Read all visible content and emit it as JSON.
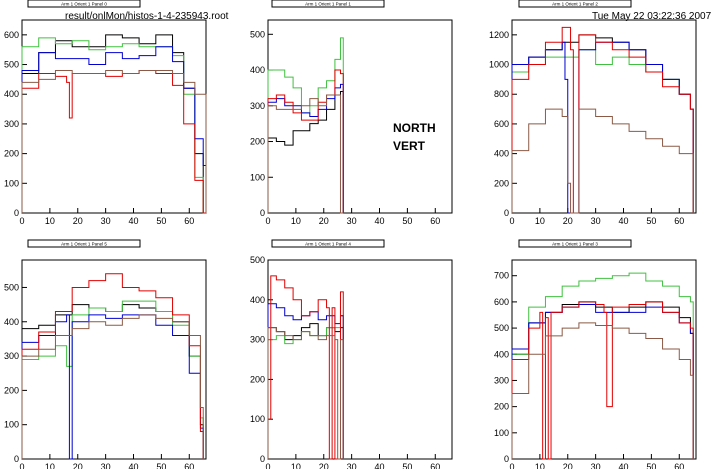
{
  "header": {
    "file_title": "result/onlMon/histos-1-4-235943.root",
    "datetime": "Tue May 22 03:22:36 2007"
  },
  "annotation": {
    "line1": "NORTH",
    "line2": "VERT"
  },
  "colors": {
    "black": "#000000",
    "red": "#e00000",
    "green": "#40c040",
    "blue": "#0000d0",
    "brown": "#8b5a46"
  },
  "chart_data": [
    {
      "type": "line",
      "title": "Arm 1 Orient 1 Panel 0",
      "xlim": [
        0,
        66
      ],
      "ylim": [
        0,
        650
      ],
      "xticks": [
        0,
        10,
        20,
        30,
        40,
        50,
        60
      ],
      "yticks": [
        0,
        100,
        200,
        300,
        400,
        500,
        600
      ],
      "series": [
        {
          "color": "black",
          "x": [
            0,
            6,
            12,
            18,
            24,
            30,
            36,
            42,
            48,
            54,
            58,
            62,
            65
          ],
          "values": [
            470,
            540,
            580,
            560,
            560,
            600,
            590,
            570,
            600,
            540,
            420,
            200,
            0
          ]
        },
        {
          "color": "green",
          "x": [
            0,
            6,
            12,
            18,
            24,
            30,
            36,
            42,
            48,
            54,
            58,
            62,
            65
          ],
          "values": [
            560,
            590,
            570,
            580,
            550,
            560,
            570,
            560,
            560,
            530,
            400,
            120,
            0
          ]
        },
        {
          "color": "blue",
          "x": [
            0,
            6,
            12,
            18,
            24,
            30,
            36,
            42,
            48,
            54,
            58,
            62,
            65
          ],
          "values": [
            480,
            540,
            520,
            520,
            500,
            540,
            520,
            530,
            560,
            510,
            420,
            250,
            160
          ]
        },
        {
          "color": "red",
          "x": [
            0,
            6,
            12,
            16,
            17,
            18,
            24,
            30,
            36,
            42,
            48,
            54,
            58,
            62,
            65
          ],
          "values": [
            420,
            470,
            460,
            440,
            320,
            470,
            470,
            460,
            470,
            480,
            470,
            430,
            300,
            110,
            0
          ]
        },
        {
          "color": "brown",
          "x": [
            0,
            6,
            12,
            18,
            24,
            30,
            36,
            42,
            48,
            54,
            58,
            62,
            65
          ],
          "values": [
            440,
            450,
            480,
            470,
            470,
            480,
            470,
            480,
            480,
            470,
            440,
            400,
            400
          ]
        }
      ]
    },
    {
      "type": "line",
      "title": "Arm 1 Orient 1 Panel 1",
      "xlim": [
        0,
        66
      ],
      "ylim": [
        0,
        540
      ],
      "xticks": [
        0,
        10,
        20,
        30,
        40,
        50,
        60
      ],
      "yticks": [
        0,
        100,
        200,
        300,
        400,
        500
      ],
      "series": [
        {
          "color": "black",
          "x": [
            0,
            3,
            6,
            9,
            12,
            15,
            18,
            21,
            24,
            26
          ],
          "values": [
            210,
            200,
            190,
            230,
            230,
            250,
            260,
            290,
            330,
            340
          ]
        },
        {
          "color": "green",
          "x": [
            0,
            3,
            6,
            9,
            12,
            15,
            18,
            21,
            24,
            26
          ],
          "values": [
            400,
            400,
            380,
            350,
            280,
            300,
            350,
            370,
            430,
            490
          ]
        },
        {
          "color": "blue",
          "x": [
            0,
            3,
            6,
            9,
            12,
            15,
            18,
            21,
            24,
            26
          ],
          "values": [
            310,
            320,
            300,
            300,
            280,
            270,
            290,
            320,
            350,
            360
          ]
        },
        {
          "color": "red",
          "x": [
            0,
            3,
            6,
            9,
            12,
            15,
            18,
            21,
            24,
            26
          ],
          "values": [
            320,
            330,
            310,
            280,
            260,
            260,
            310,
            330,
            400,
            390
          ]
        },
        {
          "color": "brown",
          "x": [
            0,
            3,
            6,
            9,
            12,
            15,
            18,
            21,
            24,
            26
          ],
          "values": [
            300,
            290,
            290,
            290,
            300,
            320,
            300,
            330,
            330,
            0
          ]
        }
      ]
    },
    {
      "type": "line",
      "title": "Arm 1 Orient 1 Panel 2",
      "xlim": [
        0,
        66
      ],
      "ylim": [
        0,
        1300
      ],
      "xticks": [
        0,
        10,
        20,
        30,
        40,
        50,
        60
      ],
      "yticks": [
        0,
        200,
        400,
        600,
        800,
        1000,
        1200
      ],
      "series": [
        {
          "color": "black",
          "x": [
            0,
            6,
            12,
            18,
            24,
            30,
            36,
            42,
            48,
            54,
            60,
            64
          ],
          "values": [
            1000,
            1050,
            1100,
            1150,
            1200,
            1180,
            1150,
            1100,
            1000,
            900,
            800,
            700
          ]
        },
        {
          "color": "green",
          "x": [
            0,
            6,
            12,
            18,
            24,
            30,
            36,
            42,
            48,
            54,
            60,
            64
          ],
          "values": [
            950,
            1000,
            1050,
            1050,
            1100,
            1000,
            1050,
            1000,
            950,
            900,
            800,
            700
          ]
        },
        {
          "color": "blue",
          "x": [
            0,
            6,
            12,
            18,
            19,
            20,
            24,
            30,
            36,
            42,
            48,
            54,
            60,
            64
          ],
          "values": [
            1000,
            1050,
            1100,
            1150,
            900,
            0,
            1100,
            1150,
            1150,
            1100,
            1000,
            900,
            800,
            700
          ]
        },
        {
          "color": "red",
          "x": [
            0,
            6,
            12,
            18,
            21,
            22,
            24,
            30,
            36,
            42,
            48,
            54,
            60,
            64
          ],
          "values": [
            900,
            1000,
            1150,
            1250,
            1100,
            0,
            1200,
            1150,
            1100,
            1050,
            950,
            850,
            800,
            700
          ]
        },
        {
          "color": "brown",
          "x": [
            0,
            6,
            12,
            18,
            20,
            21,
            24,
            30,
            36,
            42,
            48,
            54,
            60,
            64
          ],
          "values": [
            420,
            600,
            700,
            650,
            200,
            0,
            700,
            650,
            600,
            550,
            500,
            450,
            400,
            400
          ]
        }
      ]
    },
    {
      "type": "line",
      "title": "Arm 1 Orient 1 Panel 5",
      "xlim": [
        0,
        66
      ],
      "ylim": [
        0,
        580
      ],
      "xticks": [
        0,
        10,
        20,
        30,
        40,
        50,
        60
      ],
      "yticks": [
        0,
        100,
        200,
        300,
        400,
        500
      ],
      "series": [
        {
          "color": "black",
          "x": [
            0,
            6,
            12,
            18,
            24,
            30,
            36,
            42,
            48,
            54,
            60,
            64
          ],
          "values": [
            380,
            390,
            420,
            450,
            440,
            430,
            450,
            440,
            430,
            400,
            300,
            100
          ]
        },
        {
          "color": "green",
          "x": [
            0,
            6,
            12,
            16,
            18,
            24,
            30,
            36,
            42,
            48,
            54,
            60,
            64
          ],
          "values": [
            290,
            300,
            330,
            270,
            420,
            440,
            430,
            460,
            460,
            430,
            390,
            300,
            120
          ]
        },
        {
          "color": "blue",
          "x": [
            0,
            6,
            12,
            16,
            17,
            18,
            24,
            30,
            36,
            42,
            48,
            54,
            60,
            64
          ],
          "values": [
            340,
            360,
            400,
            420,
            0,
            400,
            420,
            410,
            420,
            420,
            390,
            360,
            250,
            90
          ]
        },
        {
          "color": "red",
          "x": [
            0,
            6,
            12,
            18,
            24,
            30,
            36,
            42,
            48,
            54,
            60,
            64
          ],
          "values": [
            320,
            370,
            430,
            500,
            520,
            540,
            500,
            490,
            470,
            420,
            330,
            80
          ]
        },
        {
          "color": "brown",
          "x": [
            0,
            6,
            12,
            18,
            24,
            30,
            36,
            42,
            48,
            54,
            60,
            64
          ],
          "values": [
            300,
            320,
            360,
            380,
            400,
            390,
            410,
            420,
            410,
            400,
            360,
            150
          ]
        }
      ]
    },
    {
      "type": "line",
      "title": "Arm 1 Orient 1 Panel 4",
      "xlim": [
        0,
        66
      ],
      "ylim": [
        0,
        500
      ],
      "xticks": [
        0,
        10,
        20,
        30,
        40,
        50,
        60
      ],
      "yticks": [
        0,
        100,
        200,
        300,
        400,
        500
      ],
      "series": [
        {
          "color": "black",
          "x": [
            0,
            3,
            6,
            9,
            12,
            15,
            18,
            21,
            24,
            26
          ],
          "values": [
            330,
            320,
            300,
            310,
            330,
            340,
            310,
            330,
            320,
            330
          ]
        },
        {
          "color": "green",
          "x": [
            0,
            3,
            6,
            9,
            12,
            15,
            18,
            21,
            24,
            26
          ],
          "values": [
            300,
            310,
            290,
            300,
            320,
            310,
            310,
            330,
            330,
            360
          ]
        },
        {
          "color": "blue",
          "x": [
            0,
            3,
            6,
            9,
            12,
            15,
            18,
            21,
            24,
            26
          ],
          "values": [
            390,
            380,
            360,
            350,
            360,
            370,
            350,
            360,
            340,
            360
          ]
        },
        {
          "color": "red",
          "x": [
            0,
            1,
            3,
            6,
            9,
            12,
            15,
            18,
            21,
            22,
            23,
            24,
            26
          ],
          "values": [
            100,
            460,
            450,
            430,
            400,
            360,
            370,
            400,
            380,
            0,
            380,
            0,
            420
          ]
        },
        {
          "color": "brown",
          "x": [
            0,
            3,
            6,
            9,
            12,
            15,
            18,
            21,
            24,
            25,
            26
          ],
          "values": [
            330,
            320,
            310,
            300,
            320,
            310,
            300,
            310,
            300,
            0,
            300
          ]
        }
      ]
    },
    {
      "type": "line",
      "title": "Arm 1 Orient 1 Panel 3",
      "xlim": [
        0,
        66
      ],
      "ylim": [
        0,
        760
      ],
      "xticks": [
        0,
        10,
        20,
        30,
        40,
        50,
        60
      ],
      "yticks": [
        0,
        100,
        200,
        300,
        400,
        500,
        600,
        700
      ],
      "series": [
        {
          "color": "black",
          "x": [
            0,
            6,
            12,
            18,
            24,
            30,
            36,
            42,
            48,
            54,
            60,
            64
          ],
          "values": [
            400,
            520,
            560,
            590,
            600,
            580,
            560,
            580,
            600,
            580,
            540,
            480
          ]
        },
        {
          "color": "green",
          "x": [
            0,
            6,
            12,
            18,
            24,
            30,
            36,
            42,
            48,
            54,
            60,
            64
          ],
          "values": [
            400,
            580,
            620,
            660,
            680,
            690,
            700,
            710,
            680,
            660,
            620,
            600
          ]
        },
        {
          "color": "blue",
          "x": [
            0,
            6,
            12,
            18,
            24,
            30,
            36,
            42,
            48,
            54,
            60,
            64
          ],
          "values": [
            420,
            520,
            560,
            580,
            590,
            560,
            560,
            560,
            580,
            560,
            520,
            480
          ]
        },
        {
          "color": "red",
          "x": [
            0,
            6,
            10,
            11,
            12,
            13,
            14,
            18,
            24,
            30,
            33,
            34,
            36,
            42,
            48,
            54,
            60,
            64
          ],
          "values": [
            380,
            500,
            560,
            0,
            540,
            0,
            560,
            580,
            600,
            590,
            560,
            200,
            580,
            590,
            600,
            560,
            520,
            500
          ]
        },
        {
          "color": "brown",
          "x": [
            0,
            6,
            12,
            18,
            24,
            30,
            36,
            42,
            48,
            54,
            60,
            64
          ],
          "values": [
            250,
            400,
            470,
            500,
            520,
            510,
            500,
            480,
            460,
            420,
            380,
            320
          ]
        }
      ]
    }
  ]
}
